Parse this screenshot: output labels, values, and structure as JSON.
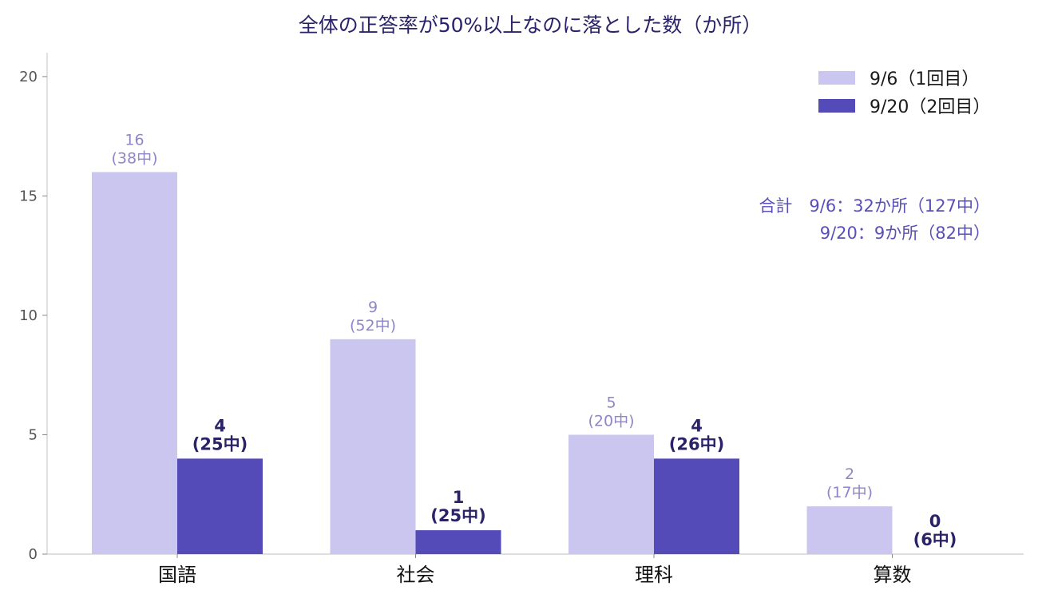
{
  "chart_data": {
    "type": "bar",
    "title": "全体の正答率が50%以上なのに落とした数（か所）",
    "xlabel": "",
    "ylabel": "",
    "categories": [
      "国語",
      "社会",
      "理科",
      "算数"
    ],
    "ylim": [
      0,
      21
    ],
    "yticks": [
      0,
      5,
      10,
      15,
      20
    ],
    "series": [
      {
        "name": "9/6（1回目）",
        "color": "#cbc6f0",
        "values": [
          16,
          9,
          5,
          2
        ],
        "value_labels": [
          "16",
          "9",
          "5",
          "2"
        ],
        "sub_labels": [
          "(38中)",
          "(52中)",
          "(20中)",
          "(17中)"
        ]
      },
      {
        "name": "9/20（2回目）",
        "color": "#544bb8",
        "values": [
          4,
          1,
          4,
          0
        ],
        "value_labels": [
          "4",
          "1",
          "4",
          "0"
        ],
        "sub_labels": [
          "(25中)",
          "(25中)",
          "(26中)",
          "(6中)"
        ]
      }
    ],
    "annotation": {
      "line1": "合計　9/6：32か所（127中）",
      "line2": "9/20：9か所（82中）"
    },
    "legend_position": "top-right",
    "grid": false
  }
}
